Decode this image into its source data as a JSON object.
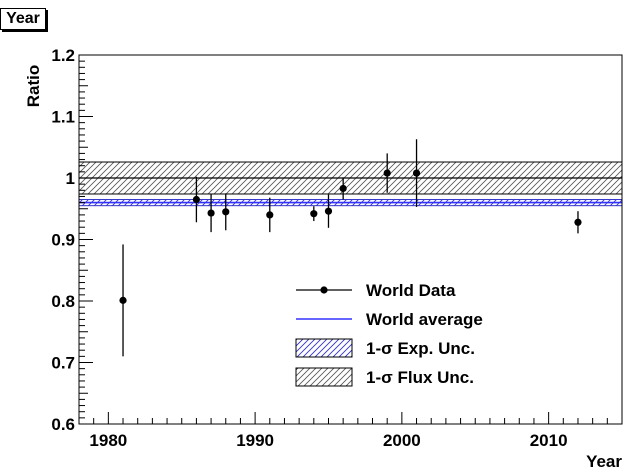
{
  "canvas_tab": "Year",
  "chart_data": {
    "type": "scatter",
    "xlabel": "Year",
    "ylabel": "Ratio",
    "xlim": [
      1978,
      2015
    ],
    "ylim": [
      0.6,
      1.2
    ],
    "x_ticks": [
      1980,
      1990,
      2000,
      2010
    ],
    "x_tick_labels": [
      "1980",
      "1990",
      "2000",
      "2010"
    ],
    "y_ticks": [
      0.6,
      0.7,
      0.8,
      0.9,
      1.0,
      1.1,
      1.2
    ],
    "y_tick_labels": [
      "0.6",
      "0.7",
      "0.8",
      "0.9",
      "1",
      "1.1",
      "1.2"
    ],
    "grid": false,
    "legend_position": "bottom-right",
    "reference_line": 1.0,
    "world_average": 0.96,
    "exp_unc_band": [
      0.955,
      0.965
    ],
    "flux_unc_band": [
      0.974,
      1.026
    ],
    "series": [
      {
        "name": "World Data",
        "color": "#000000",
        "points": [
          {
            "x": 1981,
            "y": 0.801,
            "err": 0.091
          },
          {
            "x": 1986,
            "y": 0.965,
            "err": 0.037
          },
          {
            "x": 1987,
            "y": 0.943,
            "err": 0.031
          },
          {
            "x": 1988,
            "y": 0.945,
            "err": 0.03
          },
          {
            "x": 1991,
            "y": 0.94,
            "err": 0.028
          },
          {
            "x": 1994,
            "y": 0.942,
            "err": 0.012
          },
          {
            "x": 1995,
            "y": 0.946,
            "err": 0.027
          },
          {
            "x": 1996,
            "y": 0.983,
            "err": 0.018
          },
          {
            "x": 1999,
            "y": 1.008,
            "err": 0.032
          },
          {
            "x": 2001,
            "y": 1.008,
            "err": 0.055
          },
          {
            "x": 2012,
            "y": 0.928,
            "err": 0.018
          }
        ]
      }
    ],
    "legend": [
      {
        "label": "World Data",
        "kind": "marker"
      },
      {
        "label": "World average",
        "kind": "line",
        "color": "#3333ff"
      },
      {
        "label": "1-σ Exp. Unc.",
        "kind": "hatch-blue"
      },
      {
        "label": "1-σ Flux Unc.",
        "kind": "hatch-black"
      }
    ]
  }
}
